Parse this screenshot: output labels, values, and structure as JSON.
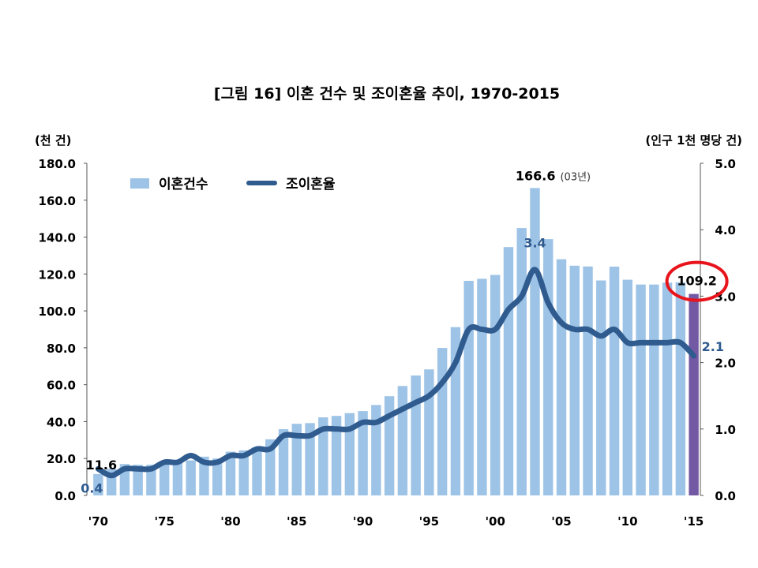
{
  "colors": {
    "bar": "#9dc3e6",
    "bar_highlight": "#7358a3",
    "line": "#2f5b8f",
    "annotation_blue": "#2f5b8f",
    "circle": "#e8141c",
    "axis": "#000000"
  },
  "chart_data": {
    "type": "bar+line",
    "title": "[그림 16] 이혼 건수 및 조이혼율 추이, 1970-2015",
    "left_axis_unit": "(천 건)",
    "right_axis_unit": "(인구 1천 명당 건)",
    "ylim_left": [
      0,
      180
    ],
    "ylim_right": [
      0,
      5
    ],
    "yticks_left": [
      "0.0",
      "20.0",
      "40.0",
      "60.0",
      "80.0",
      "100.0",
      "120.0",
      "140.0",
      "160.0",
      "180.0"
    ],
    "yticks_right": [
      "0.0",
      "1.0",
      "2.0",
      "3.0",
      "4.0",
      "5.0"
    ],
    "x_tick_labels": [
      "'70",
      "'75",
      "'80",
      "'85",
      "'90",
      "'95",
      "'00",
      "'05",
      "'10",
      "'15"
    ],
    "legend": {
      "bar_label": "이혼건수",
      "line_label": "조이혼율"
    },
    "years": [
      1970,
      1971,
      1972,
      1973,
      1974,
      1975,
      1976,
      1977,
      1978,
      1979,
      1980,
      1981,
      1982,
      1983,
      1984,
      1985,
      1986,
      1987,
      1988,
      1989,
      1990,
      1991,
      1992,
      1993,
      1994,
      1995,
      1996,
      1997,
      1998,
      1999,
      2000,
      2001,
      2002,
      2003,
      2004,
      2005,
      2006,
      2007,
      2008,
      2009,
      2010,
      2011,
      2012,
      2013,
      2014,
      2015
    ],
    "series": [
      {
        "name": "이혼건수",
        "kind": "bar",
        "axis": "left",
        "values": [
          11.6,
          14.5,
          17.0,
          16.6,
          16.6,
          17.0,
          18.5,
          19.0,
          21.0,
          20.0,
          23.7,
          24.4,
          26.1,
          30.4,
          35.9,
          38.8,
          39.2,
          42.3,
          43.1,
          44.6,
          45.7,
          49.0,
          53.8,
          59.3,
          65.0,
          68.3,
          79.9,
          91.2,
          116.3,
          117.4,
          119.5,
          134.6,
          144.9,
          166.6,
          138.9,
          128.0,
          124.5,
          124.1,
          116.5,
          124.0,
          116.9,
          114.3,
          114.3,
          115.3,
          115.5,
          109.2
        ]
      },
      {
        "name": "조이혼율",
        "kind": "line",
        "axis": "right",
        "values": [
          0.4,
          0.3,
          0.4,
          0.4,
          0.4,
          0.5,
          0.5,
          0.6,
          0.5,
          0.5,
          0.6,
          0.6,
          0.7,
          0.7,
          0.9,
          0.9,
          0.9,
          1.0,
          1.0,
          1.0,
          1.1,
          1.1,
          1.2,
          1.3,
          1.4,
          1.5,
          1.7,
          2.0,
          2.5,
          2.5,
          2.5,
          2.8,
          3.0,
          3.4,
          2.9,
          2.6,
          2.5,
          2.5,
          2.4,
          2.5,
          2.3,
          2.3,
          2.3,
          2.3,
          2.3,
          2.1
        ]
      }
    ],
    "highlight_year": 2015,
    "annotations": {
      "first_bar_value": "11.6",
      "first_rate_value": "0.4",
      "peak_bar_value": "166.6",
      "peak_bar_note": "(03년)",
      "peak_rate_value": "3.4",
      "last_bar_value": "109.2",
      "last_rate_value": "2.1"
    }
  }
}
